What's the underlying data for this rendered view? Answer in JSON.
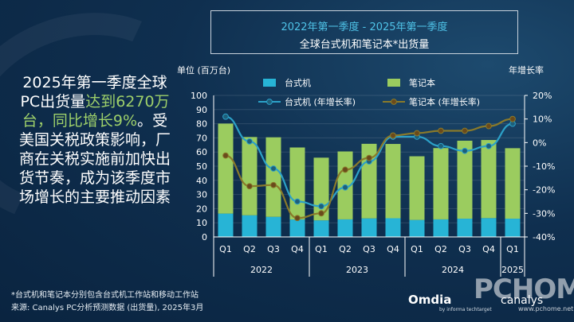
{
  "header": {
    "title_line1": "2022年第一季度 - 2025年第一季度",
    "title_line2": "全球台式机和笔记本*出货量"
  },
  "headline": {
    "part1": "2025年第一季度全球PC出货量",
    "part2": "达到6270万台，同比增长9%",
    "part3": "。受美国关税政策影响，厂商在关税实施前加快出货节奏，成为该季度市场增长的主要推动因素"
  },
  "colors": {
    "desktop_bar": "#27b4d6",
    "notebook_bar": "#9bcc5f",
    "desktop_line": "#2ca1c8",
    "notebook_line": "#8a7a2a",
    "desktop_marker": "#1e5f7a",
    "notebook_marker": "#6a4a1c"
  },
  "chart_data": {
    "type": "bar",
    "stacked": true,
    "left_axis_label": "单位 (百万台)",
    "right_axis_label": "年增长率",
    "ylim": [
      0,
      100
    ],
    "y_ticks": [
      "0",
      "10",
      "20",
      "30",
      "40",
      "50",
      "60",
      "70",
      "80",
      "90",
      "100"
    ],
    "y2lim": [
      -40,
      20
    ],
    "y2_ticks": [
      "-40%",
      "-30%",
      "-20%",
      "-10%",
      "0%",
      "10%",
      "20%"
    ],
    "categories": [
      "Q1",
      "Q2",
      "Q3",
      "Q4",
      "Q1",
      "Q2",
      "Q3",
      "Q4",
      "Q1",
      "Q2",
      "Q3",
      "Q4",
      "Q1"
    ],
    "years": [
      {
        "label": "2022",
        "count": 4
      },
      {
        "label": "2023",
        "count": 4
      },
      {
        "label": "2024",
        "count": 4
      },
      {
        "label": "2025",
        "count": 1
      }
    ],
    "series": [
      {
        "name": "台式机",
        "kind": "bar",
        "values": [
          16.5,
          15.3,
          14.2,
          12.3,
          11.7,
          12.4,
          13.1,
          13.2,
          12.0,
          12.4,
          12.9,
          13.3,
          12.9
        ]
      },
      {
        "name": "笔记本",
        "kind": "bar",
        "values": [
          63.6,
          55.3,
          56.2,
          50.9,
          44.3,
          48.0,
          52.7,
          52.5,
          45.0,
          50.4,
          55.1,
          55.2,
          49.8
        ]
      },
      {
        "name": "台式机 (年增长率)",
        "kind": "line",
        "values": [
          11,
          0.5,
          -11,
          -25,
          -27,
          -19,
          -8,
          2.5,
          2.5,
          -1.5,
          -3.5,
          -1.5,
          8
        ]
      },
      {
        "name": "笔记本 (年增长率)",
        "kind": "line",
        "values": [
          -5.5,
          -18.5,
          -18,
          -32,
          -30,
          -11.5,
          -6.5,
          3,
          4,
          5,
          5,
          7,
          10
        ]
      }
    ]
  },
  "footer": {
    "footnote": "*台式机和笔记本分别包含台式机工作站和移动工作站",
    "source": "来源: Canalys PC分析预测数据 (出货量), 2025年3月",
    "logo_omdia": "Omdia",
    "logo_omdia_sub": "by informa techtarget",
    "logo_canalys": "canalys",
    "watermark": "PCHOME",
    "watermark_url": "www.pchome.net"
  }
}
